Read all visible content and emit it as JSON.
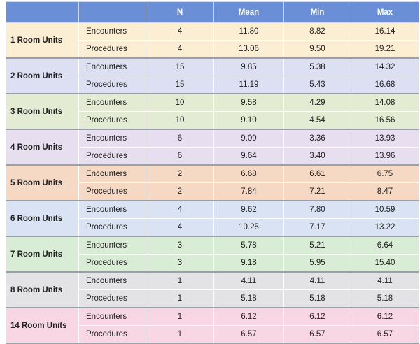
{
  "headers": [
    "",
    "",
    "N",
    "Mean",
    "Min",
    "Max"
  ],
  "groups": [
    {
      "unit": "1 Room Units",
      "bg": "#fbeed2",
      "rows": [
        {
          "type": "Encounters",
          "n": "4",
          "mean": "11.80",
          "min": "8.82",
          "max": "16.14"
        },
        {
          "type": "Procedures",
          "n": "4",
          "mean": "13.06",
          "min": "9.50",
          "max": "19.21"
        }
      ]
    },
    {
      "unit": "2 Room Units",
      "bg": "#dde0f3",
      "rows": [
        {
          "type": "Encounters",
          "n": "15",
          "mean": "9.85",
          "min": "5.38",
          "max": "14.32"
        },
        {
          "type": "Procedures",
          "n": "15",
          "mean": "11.19",
          "min": "5.43",
          "max": "16.68"
        }
      ]
    },
    {
      "unit": "3 Room Units",
      "bg": "#e3ecd3",
      "rows": [
        {
          "type": "Encounters",
          "n": "10",
          "mean": "9.58",
          "min": "4.29",
          "max": "14.08"
        },
        {
          "type": "Procedures",
          "n": "10",
          "mean": "9.10",
          "min": "4.54",
          "max": "16.56"
        }
      ]
    },
    {
      "unit": "4 Room Units",
      "bg": "#e7dff0",
      "rows": [
        {
          "type": "Encounters",
          "n": "6",
          "mean": "9.09",
          "min": "3.36",
          "max": "13.93"
        },
        {
          "type": "Procedures",
          "n": "6",
          "mean": "9.64",
          "min": "3.40",
          "max": "13.96"
        }
      ]
    },
    {
      "unit": "5 Room Units",
      "bg": "#f5d9c4",
      "rows": [
        {
          "type": "Encounters",
          "n": "2",
          "mean": "6.68",
          "min": "6.61",
          "max": "6.75"
        },
        {
          "type": "Procedures",
          "n": "2",
          "mean": "7.84",
          "min": "7.21",
          "max": "8.47"
        }
      ]
    },
    {
      "unit": "6 Room Units",
      "bg": "#d9e3f3",
      "rows": [
        {
          "type": "Encounters",
          "n": "4",
          "mean": "9.62",
          "min": "7.80",
          "max": "10.59"
        },
        {
          "type": "Procedures",
          "n": "4",
          "mean": "10.25",
          "min": "7.17",
          "max": "13.22"
        }
      ]
    },
    {
      "unit": "7 Room Units",
      "bg": "#d9ecd6",
      "rows": [
        {
          "type": "Encounters",
          "n": "3",
          "mean": "5.78",
          "min": "5.21",
          "max": "6.64"
        },
        {
          "type": "Procedures",
          "n": "3",
          "mean": "9.18",
          "min": "5.95",
          "max": "15.40"
        }
      ]
    },
    {
      "unit": "8 Room Units",
      "bg": "#e3e3e5",
      "rows": [
        {
          "type": "Encounters",
          "n": "1",
          "mean": "4.11",
          "min": "4.11",
          "max": "4.11"
        },
        {
          "type": "Procedures",
          "n": "1",
          "mean": "5.18",
          "min": "5.18",
          "max": "5.18"
        }
      ]
    },
    {
      "unit": "14 Room Units",
      "bg": "#f8d6e4",
      "rows": [
        {
          "type": "Encounters",
          "n": "1",
          "mean": "6.12",
          "min": "6.12",
          "max": "6.12"
        },
        {
          "type": "Procedures",
          "n": "1",
          "mean": "6.57",
          "min": "6.57",
          "max": "6.57"
        }
      ]
    }
  ]
}
